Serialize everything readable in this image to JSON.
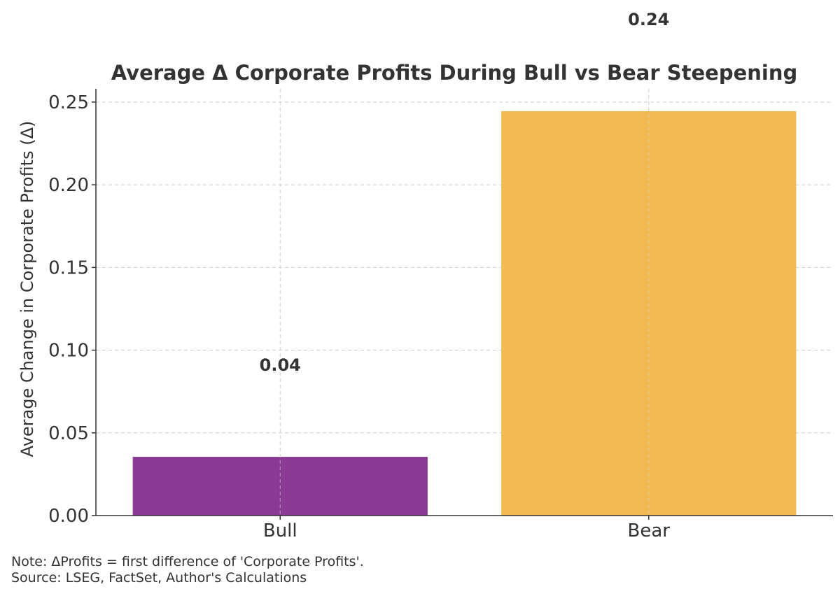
{
  "chart_data": {
    "type": "bar",
    "title": "Average Δ Corporate Profits During Bull vs Bear Steepening",
    "ylabel": "Average Change in Corporate Profits (Δ)",
    "xlabel": "",
    "categories": [
      "Bull",
      "Bear"
    ],
    "values": [
      0.0355,
      0.2445
    ],
    "data_labels": [
      "0.04",
      "0.24"
    ],
    "colors": [
      "#8a3a92",
      "#f3b952"
    ],
    "ylim": [
      0,
      0.258
    ],
    "yticks": [
      0,
      0.05,
      0.1,
      0.15,
      0.2,
      0.25
    ],
    "ytick_labels": [
      "0.00",
      "0.05",
      "0.10",
      "0.15",
      "0.20",
      "0.25"
    ],
    "grid": true,
    "legend": "none"
  },
  "footnotes": {
    "note": "Note: ΔProfits = first difference of 'Corporate Profits'.",
    "source": "Source: LSEG, FactSet, Author's Calculations"
  }
}
